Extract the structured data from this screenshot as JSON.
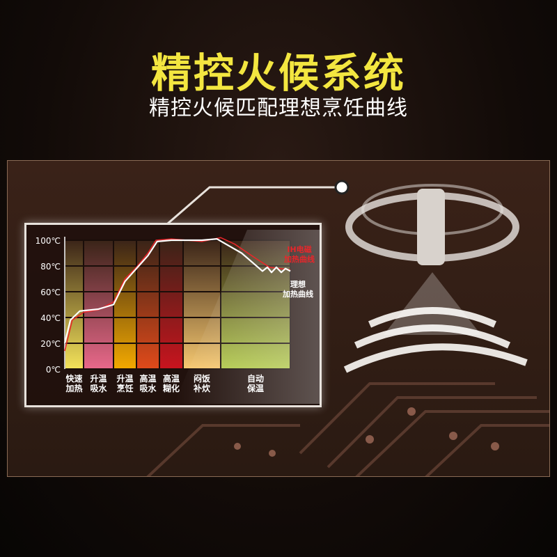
{
  "title": "精控火候系统",
  "subtitle": "精控火候匹配理想烹饪曲线",
  "chart_data": {
    "type": "line",
    "ylim": [
      0,
      100
    ],
    "yticks": [
      "0℃",
      "20℃",
      "40℃",
      "60℃",
      "80℃",
      "100℃"
    ],
    "categories": [
      [
        "快速",
        "加热"
      ],
      [
        "升温",
        "吸水"
      ],
      [
        "升温",
        "烹饪"
      ],
      [
        "高温",
        "吸水"
      ],
      [
        "高温",
        "糊化"
      ],
      [
        "闷饭",
        "补炊"
      ],
      [
        "自动",
        "保温"
      ]
    ],
    "stage_colors": [
      "#f3e35a",
      "#e8688a",
      "#f2a900",
      "#e04a1a",
      "#c8141e",
      "#f6c870",
      "#b0c848"
    ],
    "series": [
      {
        "name": "IH电磁加热曲线",
        "color": "#e8262a",
        "points": [
          [
            0,
            14
          ],
          [
            0.4,
            38
          ],
          [
            1,
            44
          ],
          [
            1.5,
            46
          ],
          [
            2,
            52
          ],
          [
            2.5,
            70
          ],
          [
            3,
            79
          ],
          [
            3.5,
            90
          ],
          [
            3.85,
            100
          ],
          [
            4.5,
            101
          ],
          [
            5.5,
            99
          ],
          [
            6,
            102
          ],
          [
            6.2,
            97
          ],
          [
            6.5,
            86
          ],
          [
            6.7,
            79
          ],
          [
            7,
            77
          ]
        ]
      },
      {
        "name": "理想加热曲线",
        "color": "#ffffff",
        "points": [
          [
            0,
            20
          ],
          [
            0.3,
            38
          ],
          [
            0.8,
            45
          ],
          [
            1.5,
            46.5
          ],
          [
            2,
            50
          ],
          [
            2.5,
            68
          ],
          [
            3,
            78
          ],
          [
            3.5,
            88
          ],
          [
            3.9,
            99
          ],
          [
            4.5,
            100
          ],
          [
            5.5,
            100
          ],
          [
            5.9,
            101
          ],
          [
            6.3,
            90
          ],
          [
            6.6,
            76
          ],
          [
            6.67,
            79
          ],
          [
            6.73,
            75
          ],
          [
            6.8,
            79
          ],
          [
            6.87,
            75
          ],
          [
            6.93,
            78
          ],
          [
            7,
            76
          ]
        ]
      }
    ],
    "legend": [
      {
        "line1": "IH电磁",
        "line2": "加热曲线",
        "color": "#e8262a"
      },
      {
        "line1": "理想",
        "line2": "加热曲线",
        "color": "#ffffff"
      }
    ]
  }
}
